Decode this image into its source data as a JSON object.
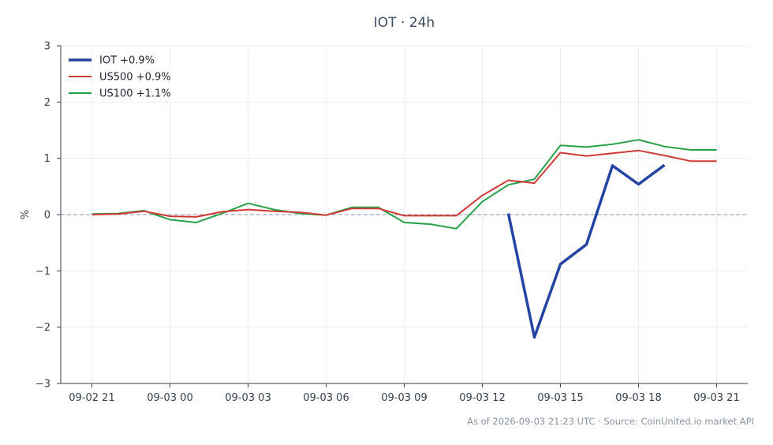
{
  "chart_data": {
    "type": "line",
    "title": "IOT · 24h",
    "ylabel": "%",
    "xlabel": "",
    "ylim": [
      -3,
      3
    ],
    "yticks": [
      3,
      2,
      1,
      0,
      -1,
      -2,
      -3
    ],
    "ytick_labels": [
      "3",
      "2",
      "1",
      "0",
      "−1",
      "−2",
      "−3"
    ],
    "x": [
      0,
      1,
      2,
      3,
      4,
      5,
      6,
      7,
      8,
      9,
      10,
      11,
      12,
      13,
      14,
      15,
      16,
      17,
      18,
      19,
      20,
      21,
      22,
      23,
      24
    ],
    "xticks": [
      0,
      3,
      6,
      9,
      12,
      15,
      18,
      21,
      24
    ],
    "xtick_labels": [
      "09-02 21",
      "09-03 00",
      "09-03 03",
      "09-03 06",
      "09-03 09",
      "09-03 12",
      "09-03 15",
      "09-03 18",
      "09-03 21"
    ],
    "grid": true,
    "baseline": 0,
    "legend_position": "top-left",
    "series": [
      {
        "name": "IOT +0.9%",
        "color": "#2444a3",
        "width": "thick",
        "values": [
          null,
          null,
          null,
          null,
          null,
          null,
          null,
          null,
          null,
          null,
          null,
          null,
          null,
          null,
          null,
          null,
          0.02,
          -2.18,
          -0.88,
          -0.53,
          0.87,
          0.54,
          0.88,
          null,
          null
        ]
      },
      {
        "name": "US500 +0.9%",
        "color": "#d03a35",
        "width": "normal",
        "values": [
          0.0,
          0.01,
          0.06,
          -0.03,
          -0.04,
          0.05,
          0.09,
          0.06,
          0.04,
          -0.01,
          0.11,
          0.11,
          -0.02,
          -0.02,
          -0.02,
          0.34,
          0.61,
          0.56,
          1.1,
          1.04,
          1.09,
          1.14,
          1.05,
          0.95,
          0.95
        ]
      },
      {
        "name": "US100 +1.1%",
        "color": "#27a14a",
        "width": "normal",
        "values": [
          0.01,
          0.02,
          0.07,
          -0.09,
          -0.14,
          0.02,
          0.2,
          0.09,
          0.02,
          -0.01,
          0.13,
          0.13,
          -0.14,
          -0.17,
          -0.25,
          0.23,
          0.53,
          0.63,
          1.23,
          1.2,
          1.25,
          1.33,
          1.21,
          1.15,
          1.15
        ]
      }
    ]
  },
  "footer": {
    "note": "As of 2026-09-03 21:23 UTC · Source: CoinUnited.io market API"
  }
}
